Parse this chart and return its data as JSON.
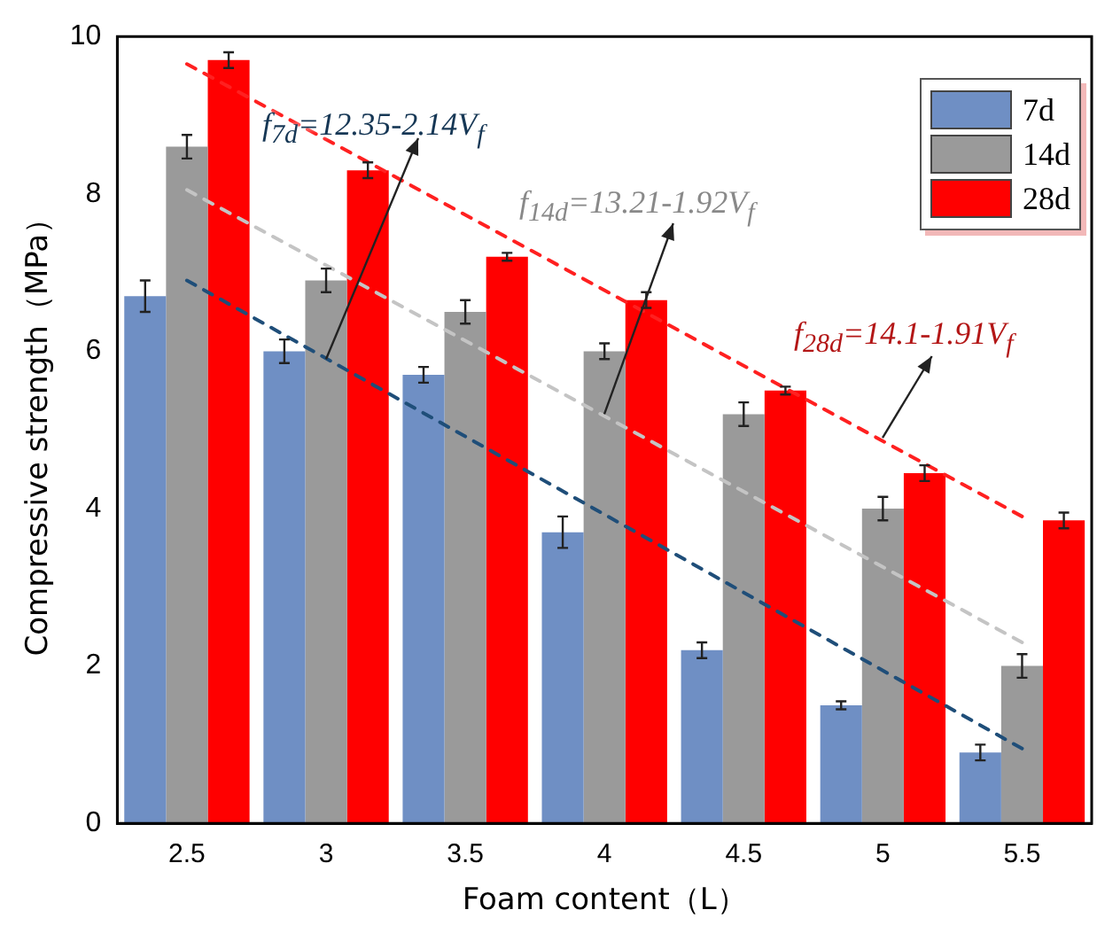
{
  "chart_data": {
    "type": "bar",
    "xlabel": "Foam content（L）",
    "ylabel": "Compressive strength（MPa）",
    "categories": [
      "2.5",
      "3",
      "3.5",
      "4",
      "4.5",
      "5",
      "5.5"
    ],
    "series": [
      {
        "name": "7d",
        "color": "#6f8fc4",
        "values": [
          6.7,
          6.0,
          5.7,
          3.7,
          2.2,
          1.5,
          0.9
        ],
        "errors": [
          0.2,
          0.15,
          0.1,
          0.2,
          0.1,
          0.05,
          0.1
        ]
      },
      {
        "name": "14d",
        "color": "#9a9a9a",
        "values": [
          8.6,
          6.9,
          6.5,
          6.0,
          5.2,
          4.0,
          2.0
        ],
        "errors": [
          0.15,
          0.15,
          0.15,
          0.1,
          0.15,
          0.15,
          0.15
        ]
      },
      {
        "name": "28d",
        "color": "#ff0000",
        "values": [
          9.7,
          8.3,
          7.2,
          6.65,
          5.5,
          4.45,
          3.85
        ],
        "errors": [
          0.1,
          0.1,
          0.05,
          0.1,
          0.05,
          0.1,
          0.1
        ]
      },
      {
        "type": "line",
        "color": "#1f4e79",
        "line_style": "dashed",
        "x": [
          "2.5",
          "5.5"
        ],
        "values": [
          6.9,
          0.95
        ]
      },
      {
        "type": "line",
        "color": "#c4c4c4",
        "line_style": "dashed",
        "x": [
          "2.5",
          "5.5"
        ],
        "values": [
          8.05,
          2.3
        ]
      },
      {
        "type": "line",
        "color": "#ff2020",
        "line_style": "dashed",
        "x": [
          "2.5",
          "5.5"
        ],
        "values": [
          9.65,
          3.9
        ]
      }
    ],
    "ylim": [
      0,
      10
    ],
    "yticks": [
      0,
      2,
      4,
      6,
      8,
      10
    ],
    "grid": false,
    "legend": "top right",
    "marker": "none",
    "annotations": [
      {
        "text": "f$_{7d}$=12.35-2.14V$_{f}$",
        "x": "3",
        "y": 5.9
      },
      {
        "text": "f$_{14d}$=13.21-1.92V$_{f}$",
        "x": "4",
        "y": 5.2
      },
      {
        "text": "f$_{28d}$=14.1-1.91V$_{f}$",
        "x": "5",
        "y": 4.9
      }
    ]
  }
}
